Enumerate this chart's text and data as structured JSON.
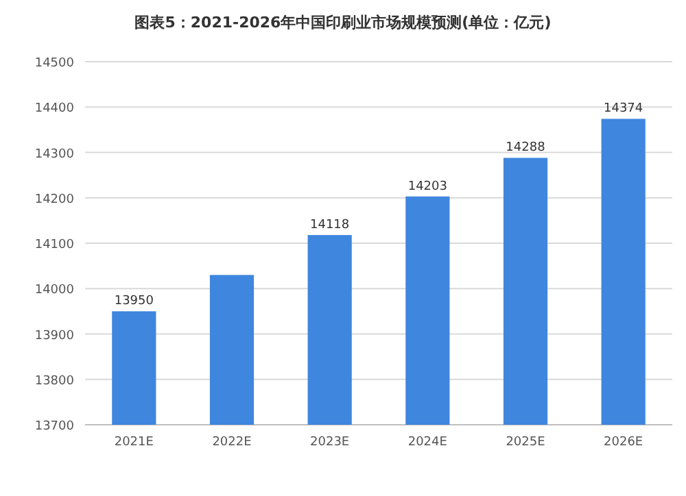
{
  "chart_data": {
    "type": "bar",
    "title": "图表5：2021-2026年中国印刷业市场规模预测(单位：亿元)",
    "categories": [
      "2021E",
      "2022E",
      "2023E",
      "2024E",
      "2025E",
      "2026E"
    ],
    "values": [
      13950,
      14030,
      14118,
      14203,
      14288,
      14374
    ],
    "value_labels": [
      "13950",
      null,
      "14118",
      "14203",
      "14288",
      "14374"
    ],
    "color": "#3f86de",
    "ylim": [
      13700,
      14500
    ],
    "yticks": [
      13700,
      13800,
      13900,
      14000,
      14100,
      14200,
      14300,
      14400,
      14500
    ],
    "grid": "y"
  }
}
